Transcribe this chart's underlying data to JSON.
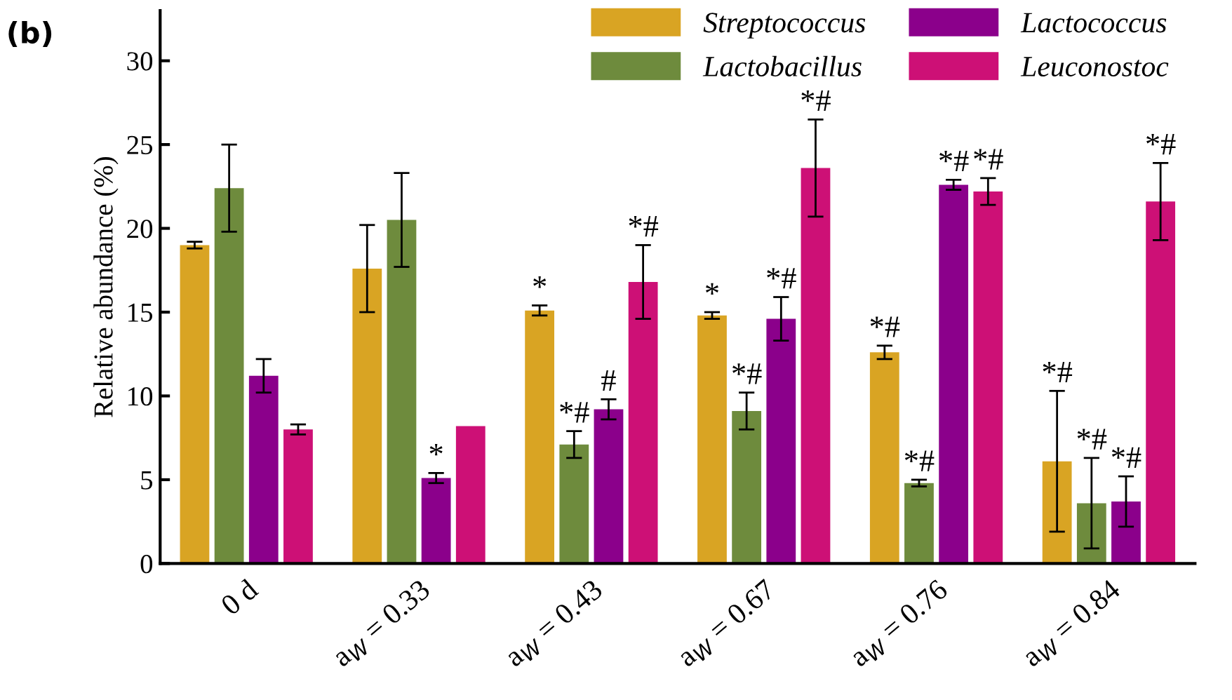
{
  "chart_data": {
    "type": "bar",
    "ylabel": "Relative abundance (%)",
    "categories": [
      "0 d",
      "a$_{W}$ = 0.33",
      "a$_{W}$ = 0.43",
      "a$_{W}$ = 0.67",
      "a$_{W}$ = 0.76",
      "a$_{W}$ = 0.84"
    ],
    "series": [
      {
        "name": "Streptococcus",
        "color": "#d9a423",
        "values": [
          19.0,
          17.6,
          15.1,
          14.8,
          12.6,
          6.1
        ],
        "errors": [
          0.2,
          2.6,
          0.3,
          0.2,
          0.4,
          4.2
        ],
        "value_labels": [
          null,
          null,
          "*",
          "*",
          "*#",
          "*#"
        ]
      },
      {
        "name": "Lactobacillus",
        "color": "#6e8b3d",
        "values": [
          22.4,
          20.5,
          7.1,
          9.1,
          4.8,
          3.6
        ],
        "errors": [
          2.6,
          2.8,
          0.8,
          1.1,
          0.2,
          2.7
        ],
        "value_labels": [
          null,
          null,
          "*#",
          "*#",
          "*#",
          "*#"
        ]
      },
      {
        "name": "Lactococcus",
        "color": "#8b008b",
        "values": [
          11.2,
          5.1,
          9.2,
          14.6,
          22.6,
          3.7
        ],
        "errors": [
          1.0,
          0.3,
          0.6,
          1.3,
          0.3,
          1.5
        ],
        "value_labels": [
          null,
          "*",
          "#",
          "*#",
          "*#",
          "*#"
        ]
      },
      {
        "name": "Leuconostoc",
        "color": "#cd1076",
        "values": [
          8.0,
          8.2,
          16.8,
          23.6,
          22.2,
          21.6
        ],
        "errors": [
          0.3,
          null,
          2.2,
          2.9,
          0.8,
          2.3
        ],
        "value_labels": [
          null,
          null,
          "*#",
          "*#",
          "*#",
          "*#"
        ]
      }
    ],
    "ylim": [
      0,
      33
    ],
    "yticks": [
      0,
      5,
      10,
      15,
      20,
      25,
      30
    ],
    "grid": false,
    "legend": "top right",
    "annotations": [
      "(b)"
    ]
  }
}
